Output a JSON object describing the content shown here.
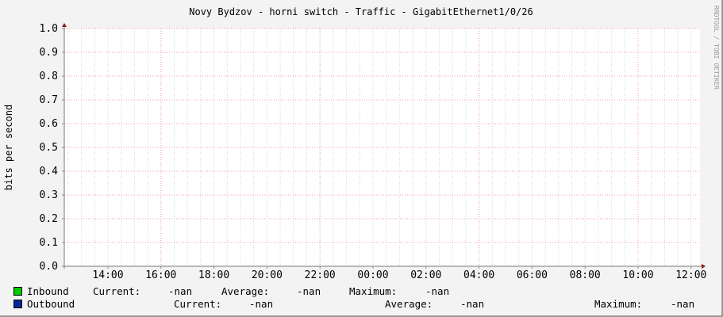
{
  "chart_data": {
    "type": "line",
    "title": "Novy Bydzov - horni switch - Traffic - GigabitEthernet1/0/26",
    "ylabel": "bits per second",
    "xlabel": "",
    "watermark": "RRDTOOL / TOBI OETIKER",
    "ylim": [
      0,
      1.0
    ],
    "yticks": [
      "0.0",
      "0.1",
      "0.2",
      "0.3",
      "0.4",
      "0.5",
      "0.6",
      "0.7",
      "0.8",
      "0.9",
      "1.0"
    ],
    "xticks": [
      "14:00",
      "16:00",
      "18:00",
      "20:00",
      "22:00",
      "00:00",
      "02:00",
      "04:00",
      "06:00",
      "08:00",
      "10:00",
      "12:00"
    ],
    "grid": true,
    "series": [
      {
        "name": "Inbound",
        "color": "#00cc00",
        "values": [],
        "current": "-nan",
        "average": "-nan",
        "maximum": "-nan"
      },
      {
        "name": "Outbound",
        "color": "#002a97",
        "values": [],
        "current": "-nan",
        "average": "-nan",
        "maximum": "-nan"
      }
    ],
    "legend_labels": {
      "current": "Current:",
      "average": "Average:",
      "maximum": "Maximum:"
    }
  }
}
